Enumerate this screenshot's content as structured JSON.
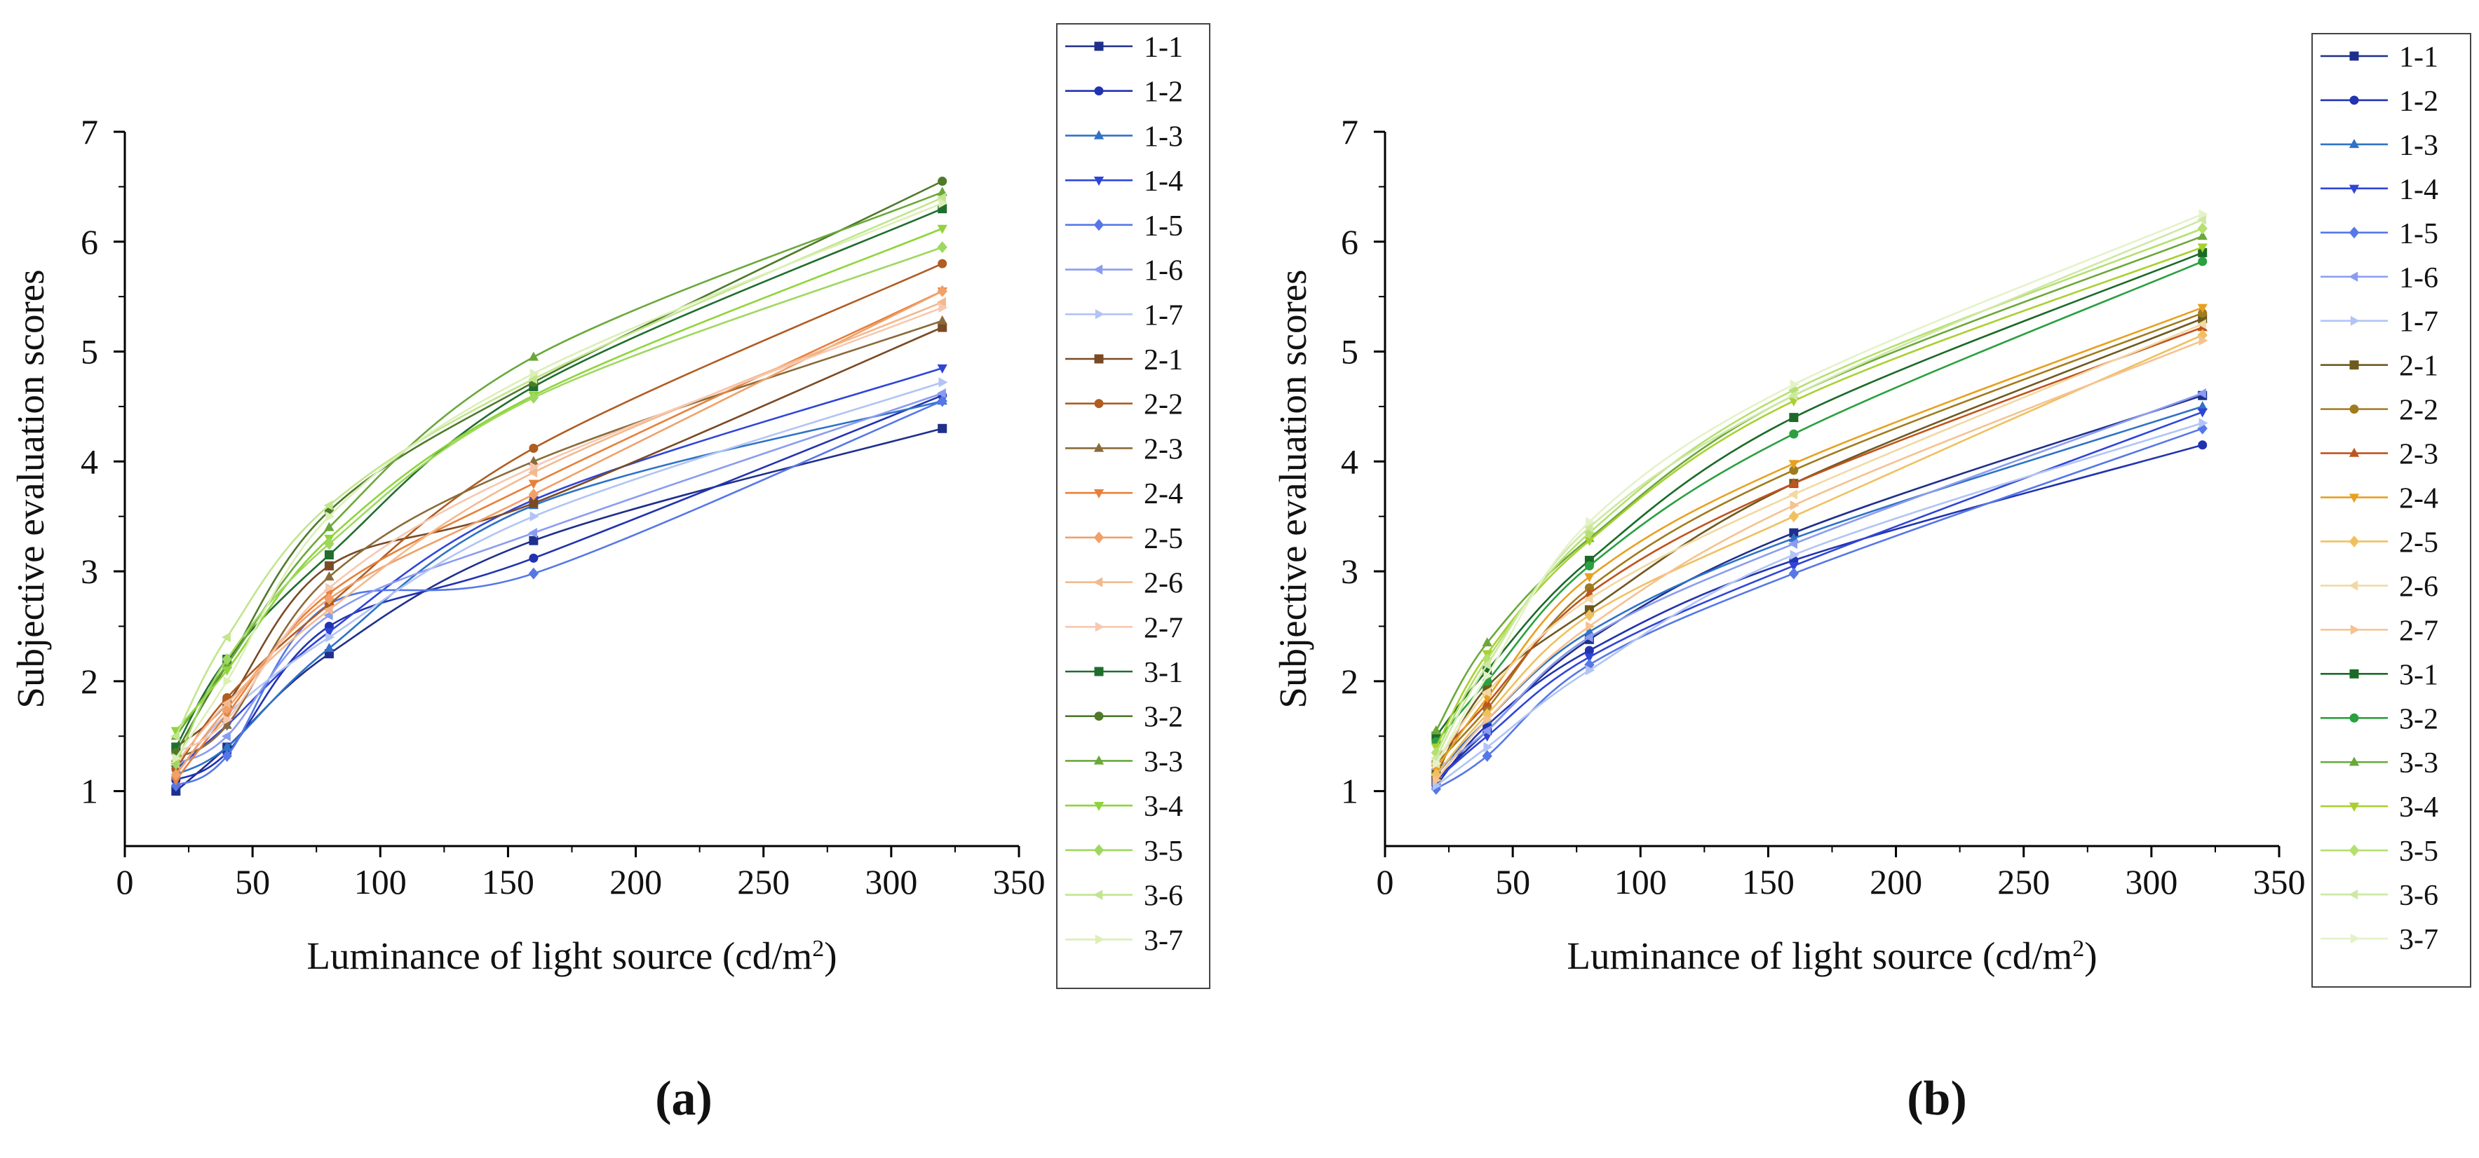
{
  "chart_data": [
    {
      "panel": "a",
      "caption": "(a)",
      "type": "line",
      "title": "",
      "xlabel": "Luminance of light source (cd/m",
      "xlabel_sup": "2",
      "xlabel_close": ")",
      "ylabel": "Subjective evaluation scores",
      "xlim": [
        0,
        350
      ],
      "ylim": [
        0.5,
        7
      ],
      "xticks": [
        0,
        50,
        100,
        150,
        200,
        250,
        300,
        350
      ],
      "yticks": [
        1,
        2,
        3,
        4,
        5,
        6,
        7
      ],
      "x": [
        20,
        40,
        80,
        160,
        320
      ],
      "series": [
        {
          "name": "1-1",
          "color": "#1f2f8c",
          "marker": "square",
          "values": [
            1.0,
            1.4,
            2.25,
            3.28,
            4.3
          ]
        },
        {
          "name": "1-2",
          "color": "#2233b0",
          "marker": "circle",
          "values": [
            1.1,
            1.35,
            2.5,
            3.12,
            4.6
          ]
        },
        {
          "name": "1-3",
          "color": "#2f73c8",
          "marker": "triangle-up",
          "values": [
            1.15,
            1.4,
            2.3,
            3.6,
            4.55
          ]
        },
        {
          "name": "1-4",
          "color": "#2f45d8",
          "marker": "triangle-down",
          "values": [
            1.2,
            1.6,
            2.45,
            3.65,
            4.85
          ]
        },
        {
          "name": "1-5",
          "color": "#5577e8",
          "marker": "diamond",
          "values": [
            1.05,
            1.32,
            2.7,
            2.98,
            4.55
          ]
        },
        {
          "name": "1-6",
          "color": "#8a9cf0",
          "marker": "triangle-left",
          "values": [
            1.25,
            1.5,
            2.6,
            3.35,
            4.62
          ]
        },
        {
          "name": "1-7",
          "color": "#b2c4f5",
          "marker": "triangle-right",
          "values": [
            1.15,
            1.7,
            2.4,
            3.5,
            4.72
          ]
        },
        {
          "name": "2-1",
          "color": "#7a4a24",
          "marker": "square",
          "values": [
            1.4,
            1.8,
            3.05,
            3.62,
            5.22
          ]
        },
        {
          "name": "2-2",
          "color": "#b05c22",
          "marker": "circle",
          "values": [
            1.2,
            1.85,
            2.7,
            4.12,
            5.8
          ]
        },
        {
          "name": "2-3",
          "color": "#8a6b3a",
          "marker": "triangle-up",
          "values": [
            1.3,
            1.6,
            2.95,
            4.0,
            5.28
          ]
        },
        {
          "name": "2-4",
          "color": "#e8803a",
          "marker": "triangle-down",
          "values": [
            1.1,
            1.7,
            2.8,
            3.8,
            5.55
          ]
        },
        {
          "name": "2-5",
          "color": "#f0a06a",
          "marker": "diamond",
          "values": [
            1.15,
            1.75,
            2.75,
            3.7,
            5.55
          ]
        },
        {
          "name": "2-6",
          "color": "#f3b98e",
          "marker": "triangle-left",
          "values": [
            1.25,
            1.8,
            2.65,
            3.9,
            5.45
          ]
        },
        {
          "name": "2-7",
          "color": "#f6c8b0",
          "marker": "triangle-right",
          "values": [
            1.35,
            1.65,
            2.85,
            3.95,
            5.4
          ]
        },
        {
          "name": "3-1",
          "color": "#1f6e2e",
          "marker": "square",
          "values": [
            1.4,
            2.2,
            3.15,
            4.68,
            6.3
          ]
        },
        {
          "name": "3-2",
          "color": "#4e7a2a",
          "marker": "circle",
          "values": [
            1.35,
            2.15,
            3.55,
            4.72,
            6.55
          ]
        },
        {
          "name": "3-3",
          "color": "#6aa83a",
          "marker": "triangle-up",
          "values": [
            1.5,
            2.15,
            3.4,
            4.95,
            6.45
          ]
        },
        {
          "name": "3-4",
          "color": "#8fd43a",
          "marker": "triangle-down",
          "values": [
            1.55,
            2.1,
            3.3,
            4.6,
            6.12
          ]
        },
        {
          "name": "3-5",
          "color": "#9ed860",
          "marker": "diamond",
          "values": [
            1.25,
            2.2,
            3.25,
            4.58,
            5.95
          ]
        },
        {
          "name": "3-6",
          "color": "#c2e58e",
          "marker": "triangle-left",
          "values": [
            1.5,
            2.4,
            3.6,
            4.75,
            6.4
          ]
        },
        {
          "name": "3-7",
          "color": "#dcefb6",
          "marker": "triangle-right",
          "values": [
            1.3,
            2.0,
            3.5,
            4.8,
            6.35
          ]
        }
      ]
    },
    {
      "panel": "b",
      "caption": "(b)",
      "type": "line",
      "title": "",
      "xlabel": "Luminance of light source (cd/m",
      "xlabel_sup": "2",
      "xlabel_close": ")",
      "ylabel": "Subjective evaluation scores",
      "xlim": [
        0,
        350
      ],
      "ylim": [
        0.5,
        7
      ],
      "xticks": [
        0,
        50,
        100,
        150,
        200,
        250,
        300,
        350
      ],
      "yticks": [
        1,
        2,
        3,
        4,
        5,
        6,
        7
      ],
      "x": [
        20,
        40,
        80,
        160,
        320
      ],
      "series": [
        {
          "name": "1-1",
          "color": "#1f2f8c",
          "marker": "square",
          "values": [
            1.1,
            1.55,
            2.38,
            3.35,
            4.6
          ]
        },
        {
          "name": "1-2",
          "color": "#2233b0",
          "marker": "circle",
          "values": [
            1.05,
            1.6,
            2.28,
            3.1,
            4.15
          ]
        },
        {
          "name": "1-3",
          "color": "#2f73c8",
          "marker": "triangle-up",
          "values": [
            1.15,
            1.65,
            2.45,
            3.3,
            4.5
          ]
        },
        {
          "name": "1-4",
          "color": "#2f45d8",
          "marker": "triangle-down",
          "values": [
            1.1,
            1.5,
            2.22,
            3.05,
            4.45
          ]
        },
        {
          "name": "1-5",
          "color": "#5577e8",
          "marker": "diamond",
          "values": [
            1.02,
            1.32,
            2.15,
            2.98,
            4.3
          ]
        },
        {
          "name": "1-6",
          "color": "#8a9cf0",
          "marker": "triangle-left",
          "values": [
            1.2,
            1.55,
            2.4,
            3.25,
            4.62
          ]
        },
        {
          "name": "1-7",
          "color": "#b2c4f5",
          "marker": "triangle-right",
          "values": [
            1.05,
            1.4,
            2.1,
            3.15,
            4.35
          ]
        },
        {
          "name": "2-1",
          "color": "#6e5a1e",
          "marker": "square",
          "values": [
            1.15,
            1.95,
            2.65,
            3.8,
            5.3
          ]
        },
        {
          "name": "2-2",
          "color": "#a07a1e",
          "marker": "circle",
          "values": [
            1.25,
            1.75,
            2.85,
            3.92,
            5.35
          ]
        },
        {
          "name": "2-3",
          "color": "#c0541e",
          "marker": "triangle-up",
          "values": [
            1.3,
            1.8,
            2.8,
            3.8,
            5.22
          ]
        },
        {
          "name": "2-4",
          "color": "#e8a020",
          "marker": "triangle-down",
          "values": [
            1.2,
            1.85,
            2.95,
            3.98,
            5.4
          ]
        },
        {
          "name": "2-5",
          "color": "#f0c060",
          "marker": "diamond",
          "values": [
            1.15,
            1.7,
            2.6,
            3.5,
            5.15
          ]
        },
        {
          "name": "2-6",
          "color": "#f2d8a4",
          "marker": "triangle-left",
          "values": [
            1.25,
            1.9,
            2.75,
            3.7,
            5.25
          ]
        },
        {
          "name": "2-7",
          "color": "#f5c290",
          "marker": "triangle-right",
          "values": [
            1.1,
            1.65,
            2.5,
            3.6,
            5.1
          ]
        },
        {
          "name": "3-1",
          "color": "#1a6b28",
          "marker": "square",
          "values": [
            1.5,
            2.1,
            3.1,
            4.4,
            5.9
          ]
        },
        {
          "name": "3-2",
          "color": "#2aa040",
          "marker": "circle",
          "values": [
            1.45,
            2.0,
            3.05,
            4.25,
            5.82
          ]
        },
        {
          "name": "3-3",
          "color": "#6aa83a",
          "marker": "triangle-up",
          "values": [
            1.55,
            2.35,
            3.3,
            4.6,
            6.05
          ]
        },
        {
          "name": "3-4",
          "color": "#a8d030",
          "marker": "triangle-down",
          "values": [
            1.4,
            2.25,
            3.28,
            4.55,
            5.95
          ]
        },
        {
          "name": "3-5",
          "color": "#b4e06e",
          "marker": "diamond",
          "values": [
            1.35,
            2.2,
            3.35,
            4.65,
            6.12
          ]
        },
        {
          "name": "3-6",
          "color": "#cde8a4",
          "marker": "triangle-left",
          "values": [
            1.3,
            2.15,
            3.4,
            4.6,
            6.2
          ]
        },
        {
          "name": "3-7",
          "color": "#e4f2c8",
          "marker": "triangle-right",
          "values": [
            1.25,
            2.05,
            3.45,
            4.7,
            6.25
          ]
        }
      ]
    }
  ]
}
